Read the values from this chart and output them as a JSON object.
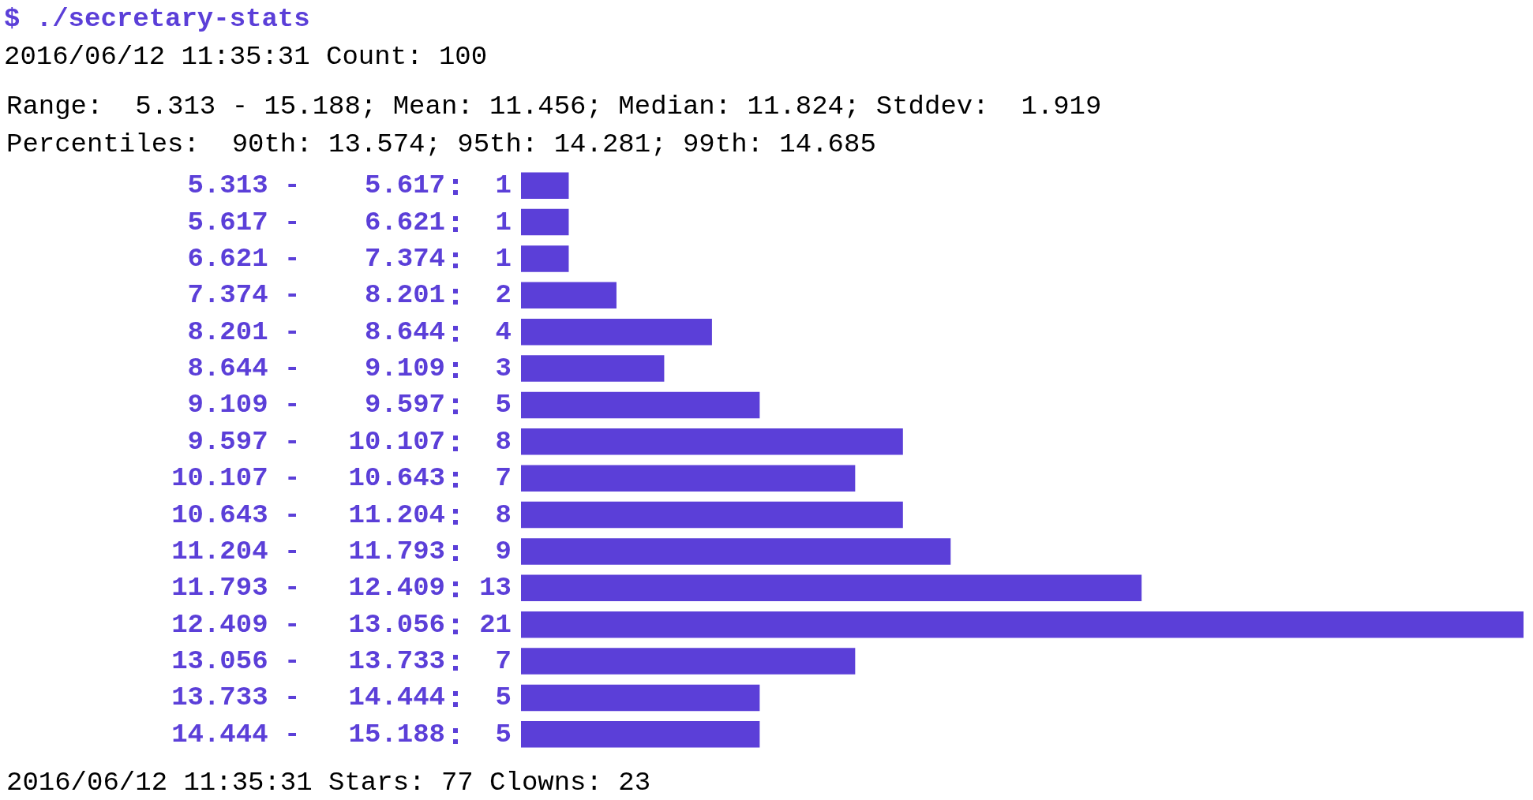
{
  "chart_data": {
    "type": "bar",
    "orientation": "horizontal",
    "title": "$ ./secretary-stats",
    "subtitle": "2016/06/12 11:35:31 Count: 100",
    "annotations": [
      "Range:  5.313 - 15.188; Mean: 11.456; Median: 11.824; Stddev:  1.919",
      "Percentiles:  90th: 13.574; 95th: 14.281; 99th: 14.685",
      "2016/06/12 11:35:31 Stars: 77 Clowns: 23"
    ],
    "categories": [
      "5.313 -    5.617",
      "5.617 -    6.621",
      "6.621 -    7.374",
      "7.374 -    8.201",
      "8.201 -    8.644",
      "8.644 -    9.109",
      "9.109 -    9.597",
      "9.597 -   10.107",
      "10.107 -   10.643",
      "10.643 -   11.204",
      "11.204 -   11.793",
      "11.793 -   12.409",
      "12.409 -   13.056",
      "13.056 -   13.733",
      "13.733 -   14.444",
      "14.444 -   15.188"
    ],
    "values": [
      1,
      1,
      1,
      2,
      4,
      3,
      5,
      8,
      7,
      8,
      9,
      13,
      21,
      7,
      5,
      5
    ],
    "color": "#5b3fd8",
    "data_labels": true,
    "tick_labels": "y"
  }
}
